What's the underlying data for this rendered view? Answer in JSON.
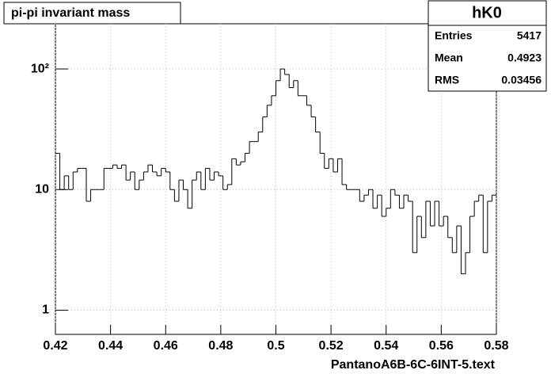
{
  "chart_data": {
    "type": "histogram",
    "title": "pi-pi invariant mass",
    "x_label": "PantanoA6B-6C-6INT-5.text",
    "stats": {
      "name": "hK0",
      "rows": [
        {
          "label": "Entries",
          "value": 5417
        },
        {
          "label": "Mean",
          "value": 0.4923
        },
        {
          "label": "RMS",
          "value": 0.03456
        }
      ]
    },
    "bins": [
      0.42,
      0.4216,
      0.4232,
      0.4248,
      0.4264,
      0.428,
      0.4296,
      0.4312,
      0.4328,
      0.4344,
      0.436,
      0.4376,
      0.4392,
      0.4408,
      0.4424,
      0.444,
      0.4456,
      0.4472,
      0.4488,
      0.4504,
      0.452,
      0.4536,
      0.4552,
      0.4568,
      0.4584,
      0.46,
      0.4616,
      0.4632,
      0.4648,
      0.4664,
      0.468,
      0.4696,
      0.4712,
      0.4728,
      0.4744,
      0.476,
      0.4776,
      0.4792,
      0.4808,
      0.4824,
      0.484,
      0.4856,
      0.4872,
      0.4888,
      0.4904,
      0.492,
      0.4936,
      0.4952,
      0.4968,
      0.4984,
      0.5,
      0.5016,
      0.5032,
      0.5048,
      0.5064,
      0.508,
      0.5096,
      0.5112,
      0.5128,
      0.5144,
      0.516,
      0.5176,
      0.5192,
      0.5208,
      0.5224,
      0.524,
      0.5256,
      0.5272,
      0.5288,
      0.5304,
      0.532,
      0.5336,
      0.5352,
      0.5368,
      0.5384,
      0.54,
      0.5416,
      0.5432,
      0.5448,
      0.5464,
      0.548,
      0.5496,
      0.5512,
      0.5528,
      0.5544,
      0.556,
      0.5576,
      0.5592,
      0.5608,
      0.5624,
      0.564,
      0.5656,
      0.5672,
      0.5688,
      0.5704,
      0.572,
      0.5736,
      0.5752,
      0.5768,
      0.5784,
      0.58
    ],
    "values": [
      20,
      10,
      13,
      10,
      14,
      15,
      15,
      8,
      10,
      10,
      10,
      15,
      15,
      16,
      15,
      16,
      12,
      14,
      10,
      12,
      14,
      16,
      14,
      13,
      15,
      14,
      10,
      8,
      12,
      10,
      7,
      12,
      14,
      10,
      15,
      12,
      14,
      13,
      10,
      11,
      18,
      16,
      17,
      20,
      25,
      25,
      30,
      40,
      50,
      60,
      80,
      100,
      90,
      70,
      80,
      60,
      60,
      50,
      40,
      30,
      20,
      15,
      18,
      14,
      18,
      11,
      10,
      10,
      10,
      8,
      9,
      10,
      7,
      9,
      6,
      7,
      10,
      9,
      7,
      9,
      8,
      3,
      6,
      4,
      8,
      5,
      8,
      5,
      6,
      4,
      3,
      5,
      2,
      3,
      6,
      8,
      9,
      3,
      8,
      9
    ],
    "color": "#000000",
    "logy": true,
    "grid": true,
    "xlim": [
      0.42,
      0.58
    ],
    "xticks": [
      0.42,
      0.44,
      0.46,
      0.48,
      0.5,
      0.52,
      0.54,
      0.56,
      0.58
    ],
    "ylim": [
      0.63,
      237
    ],
    "yticks": [
      1,
      10,
      {
        "value": 100,
        "label": "10²"
      }
    ]
  }
}
